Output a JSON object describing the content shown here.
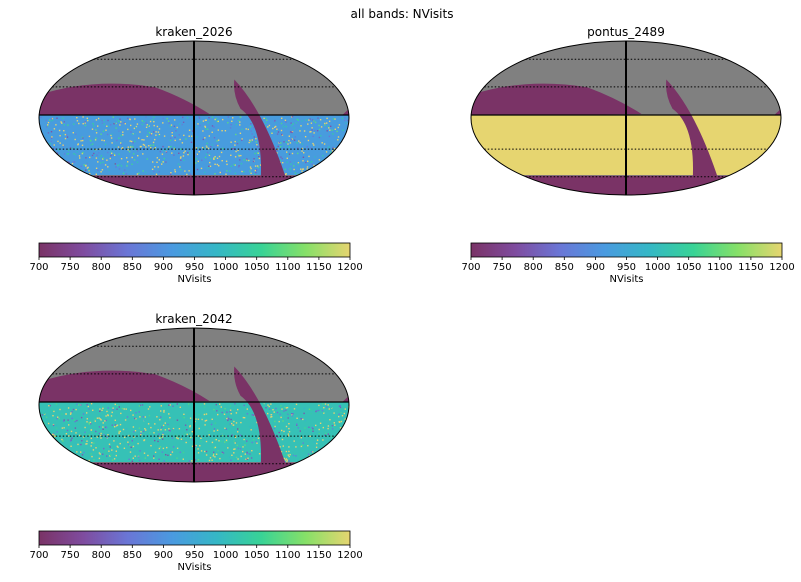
{
  "suptitle": "all bands: NVisits",
  "colors": {
    "masked": "#808080",
    "cmap": [
      "#7a3366",
      "#7f4c9f",
      "#6a76d6",
      "#4a9ae0",
      "#35b7c6",
      "#38d396",
      "#86e068",
      "#e6d570"
    ],
    "speck": "#e8d36f",
    "background": "#ffffff"
  },
  "chart_data": [
    {
      "type": "heatmap",
      "projection": "mollweide",
      "title": "kraken_2026",
      "dominant_value": 920,
      "speckle": true,
      "colorbar": {
        "label": "NVisits",
        "range": [
          700,
          1200
        ],
        "ticks": [
          "700",
          "750",
          "800",
          "850",
          "900",
          "950",
          "1000",
          "1050",
          "1100",
          "1150",
          "1200"
        ]
      }
    },
    {
      "type": "heatmap",
      "projection": "mollweide",
      "title": "pontus_2489",
      "dominant_value": 1200,
      "speckle": false,
      "colorbar": {
        "label": "NVisits",
        "range": [
          700,
          1200
        ],
        "ticks": [
          "700",
          "750",
          "800",
          "850",
          "900",
          "950",
          "1000",
          "1050",
          "1100",
          "1150",
          "1200"
        ]
      }
    },
    {
      "type": "heatmap",
      "projection": "mollweide",
      "title": "kraken_2042",
      "dominant_value": 1010,
      "speckle": true,
      "colorbar": {
        "label": "NVisits",
        "range": [
          700,
          1200
        ],
        "ticks": [
          "700",
          "750",
          "800",
          "850",
          "900",
          "950",
          "1000",
          "1050",
          "1100",
          "1150",
          "1200"
        ]
      }
    }
  ]
}
